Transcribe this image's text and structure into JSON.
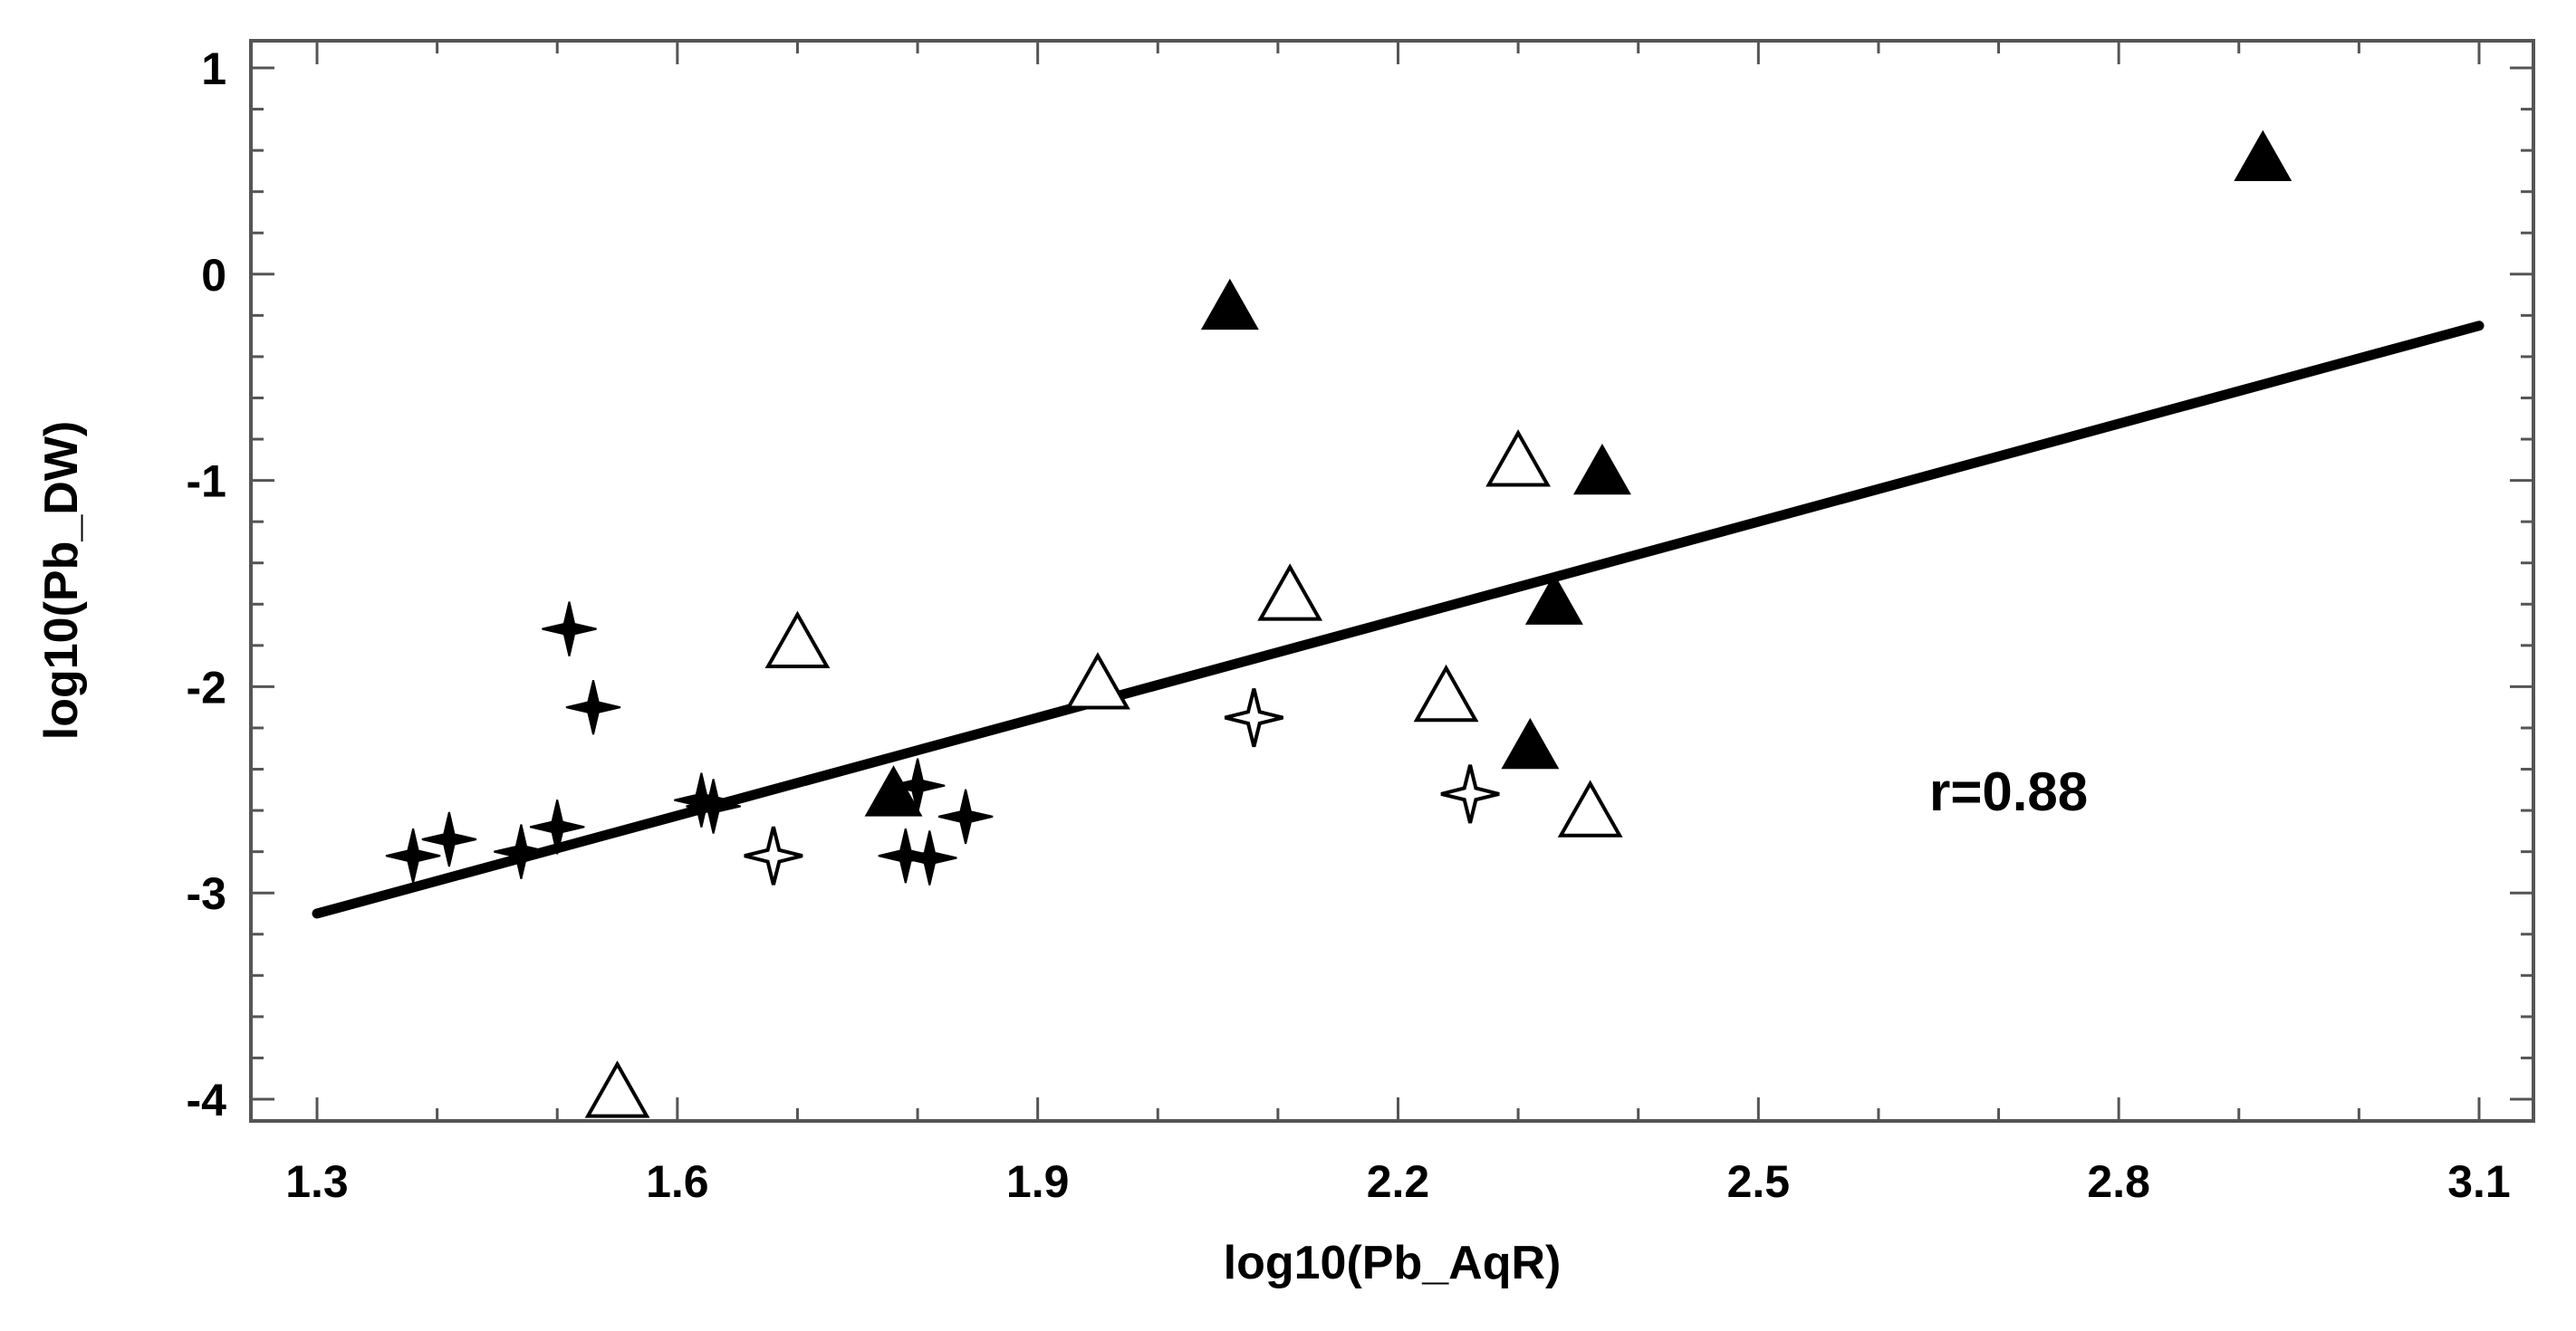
{
  "chart_data": {
    "type": "scatter",
    "xlabel": "log10(Pb_AqR)",
    "ylabel": "log10(Pb_DW)",
    "xlim": [
      1.3,
      3.1
    ],
    "ylim": [
      -4,
      1
    ],
    "x_ticks": [
      "1.3",
      "1.6",
      "1.9",
      "2.2",
      "2.5",
      "2.8",
      "3.1"
    ],
    "y_ticks": [
      "1",
      "0",
      "-1",
      "-2",
      "-3",
      "-4"
    ],
    "annotation": "r=0.88",
    "regression_line": {
      "x": [
        1.3,
        3.1
      ],
      "y": [
        -3.1,
        -0.25
      ]
    },
    "series": [
      {
        "marker": "filled-star",
        "points": [
          [
            1.38,
            -2.82
          ],
          [
            1.41,
            -2.74
          ],
          [
            1.47,
            -2.8
          ],
          [
            1.5,
            -2.68
          ],
          [
            1.51,
            -1.72
          ],
          [
            1.53,
            -2.1
          ],
          [
            1.62,
            -2.55
          ],
          [
            1.63,
            -2.58
          ],
          [
            1.79,
            -2.82
          ],
          [
            1.8,
            -2.48
          ],
          [
            1.81,
            -2.83
          ],
          [
            1.84,
            -2.63
          ]
        ]
      },
      {
        "marker": "open-star",
        "points": [
          [
            1.68,
            -2.82
          ],
          [
            2.08,
            -2.15
          ],
          [
            2.26,
            -2.52
          ]
        ]
      },
      {
        "marker": "open-triangle",
        "points": [
          [
            1.55,
            -3.98
          ],
          [
            1.7,
            -1.8
          ],
          [
            1.95,
            -2.0
          ],
          [
            2.11,
            -1.57
          ],
          [
            2.24,
            -2.06
          ],
          [
            2.3,
            -0.92
          ],
          [
            2.36,
            -2.62
          ]
        ]
      },
      {
        "marker": "filled-triangle",
        "points": [
          [
            1.78,
            -2.53
          ],
          [
            2.06,
            -0.17
          ],
          [
            2.31,
            -2.3
          ],
          [
            2.33,
            -1.6
          ],
          [
            2.37,
            -0.97
          ],
          [
            2.92,
            0.55
          ]
        ]
      }
    ]
  }
}
